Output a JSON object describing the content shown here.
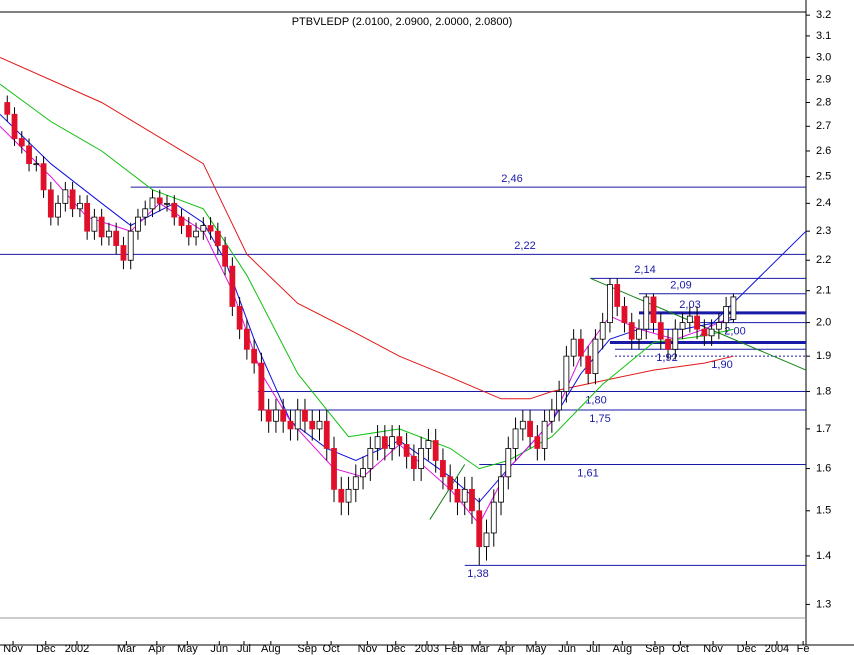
{
  "chart_data": {
    "type": "candlestick",
    "title": "PTBVLEDP (2.0100, 2.0900, 2.0000, 2.0800)",
    "log": true,
    "ylim": [
      1.285,
      3.25
    ],
    "yticks": [
      {
        "value": 3.2,
        "label": "3.2"
      },
      {
        "value": 3.1,
        "label": "3.1"
      },
      {
        "value": 3.0,
        "label": "3.0"
      },
      {
        "value": 2.9,
        "label": "2.9"
      },
      {
        "value": 2.8,
        "label": "2.8"
      },
      {
        "value": 2.7,
        "label": "2.7"
      },
      {
        "value": 2.6,
        "label": "2.6"
      },
      {
        "value": 2.5,
        "label": "2.5"
      },
      {
        "value": 2.4,
        "label": "2.4"
      },
      {
        "value": 2.3,
        "label": "2.3"
      },
      {
        "value": 2.2,
        "label": "2.2"
      },
      {
        "value": 2.1,
        "label": "2.1"
      },
      {
        "value": 2.0,
        "label": "2.0"
      },
      {
        "value": 1.9,
        "label": "1.9"
      },
      {
        "value": 1.8,
        "label": "1.8"
      },
      {
        "value": 1.7,
        "label": "1.7"
      },
      {
        "value": 1.6,
        "label": "1.6"
      },
      {
        "value": 1.5,
        "label": "1.5"
      },
      {
        "value": 1.4,
        "label": "1.4"
      },
      {
        "value": 1.3,
        "label": "1.3"
      }
    ],
    "xlim": [
      0,
      111
    ],
    "xticks": [
      {
        "value": 1.8,
        "label": "Nov"
      },
      {
        "value": 6.3,
        "label": "Dec"
      },
      {
        "value": 10.6,
        "label": "2002"
      },
      {
        "value": 17.4,
        "label": "Mar"
      },
      {
        "value": 21.6,
        "label": "Apr"
      },
      {
        "value": 25.8,
        "label": "May"
      },
      {
        "value": 30.2,
        "label": "Jun"
      },
      {
        "value": 33.6,
        "label": "Jul"
      },
      {
        "value": 37.3,
        "label": "Aug"
      },
      {
        "value": 42.3,
        "label": "Sep"
      },
      {
        "value": 45.6,
        "label": "Oct"
      },
      {
        "value": 50.6,
        "label": "Nov"
      },
      {
        "value": 54.5,
        "label": "Dec"
      },
      {
        "value": 58.8,
        "label": "2003"
      },
      {
        "value": 62.5,
        "label": "Feb"
      },
      {
        "value": 66.1,
        "label": "Mar"
      },
      {
        "value": 69.7,
        "label": "Apr"
      },
      {
        "value": 73.8,
        "label": "May"
      },
      {
        "value": 78.1,
        "label": "Jun"
      },
      {
        "value": 81.7,
        "label": "Jul"
      },
      {
        "value": 85.7,
        "label": "Aug"
      },
      {
        "value": 90.2,
        "label": "Sep"
      },
      {
        "value": 93.7,
        "label": "Oct"
      },
      {
        "value": 98.2,
        "label": "Nov"
      },
      {
        "value": 102.8,
        "label": "Dec"
      },
      {
        "value": 107,
        "label": "2004"
      },
      {
        "value": 110.6,
        "label": "Fe"
      }
    ],
    "up_color": "#ffffff",
    "down_color": "#e0102a",
    "x": [
      1,
      2,
      3,
      4,
      5,
      6,
      7,
      8,
      9,
      10,
      11,
      12,
      13,
      14,
      15,
      16,
      17,
      18,
      19,
      20,
      21,
      22,
      23,
      24,
      25,
      26,
      27,
      28,
      29,
      30,
      31,
      32,
      33,
      34,
      35,
      36,
      37,
      38,
      39,
      40,
      41,
      42,
      43,
      44,
      45,
      46,
      47,
      48,
      49,
      50,
      51,
      52,
      53,
      54,
      55,
      56,
      57,
      58,
      59,
      60,
      61,
      62,
      63,
      64,
      65,
      66,
      67,
      68,
      69,
      70,
      71,
      72,
      73,
      74,
      75,
      76,
      77,
      78,
      79,
      80,
      81,
      82,
      83,
      84,
      85,
      86,
      87,
      88,
      89,
      90,
      91,
      92,
      93,
      94,
      95,
      96,
      97,
      98,
      99,
      100,
      101
    ],
    "open": [
      2.8,
      2.75,
      2.65,
      2.62,
      2.55,
      2.55,
      2.45,
      2.35,
      2.4,
      2.45,
      2.38,
      2.4,
      2.3,
      2.35,
      2.28,
      2.3,
      2.25,
      2.2,
      2.3,
      2.35,
      2.38,
      2.42,
      2.4,
      2.4,
      2.35,
      2.32,
      2.28,
      2.3,
      2.32,
      2.3,
      2.25,
      2.18,
      2.05,
      1.98,
      1.92,
      1.88,
      1.75,
      1.72,
      1.75,
      1.72,
      1.7,
      1.75,
      1.72,
      1.7,
      1.72,
      1.65,
      1.55,
      1.52,
      1.55,
      1.58,
      1.6,
      1.65,
      1.68,
      1.65,
      1.68,
      1.66,
      1.63,
      1.6,
      1.65,
      1.67,
      1.62,
      1.58,
      1.55,
      1.52,
      1.55,
      1.5,
      1.42,
      1.45,
      1.52,
      1.58,
      1.65,
      1.7,
      1.72,
      1.68,
      1.65,
      1.72,
      1.75,
      1.8,
      1.9,
      1.95,
      1.9,
      1.85,
      1.95,
      2.0,
      2.12,
      2.05,
      2.0,
      1.95,
      1.98,
      2.08,
      2.0,
      1.95,
      1.92,
      1.98,
      2.0,
      2.02,
      1.98,
      1.96,
      1.98,
      2.0,
      2.01
    ],
    "high": [
      2.83,
      2.78,
      2.68,
      2.65,
      2.58,
      2.58,
      2.48,
      2.43,
      2.48,
      2.48,
      2.43,
      2.43,
      2.38,
      2.38,
      2.33,
      2.33,
      2.28,
      2.33,
      2.38,
      2.41,
      2.45,
      2.45,
      2.43,
      2.43,
      2.38,
      2.35,
      2.33,
      2.35,
      2.35,
      2.33,
      2.28,
      2.21,
      2.08,
      2.01,
      1.95,
      1.91,
      1.78,
      1.78,
      1.78,
      1.75,
      1.78,
      1.78,
      1.75,
      1.75,
      1.75,
      1.68,
      1.58,
      1.58,
      1.61,
      1.63,
      1.68,
      1.71,
      1.71,
      1.71,
      1.71,
      1.69,
      1.66,
      1.68,
      1.7,
      1.7,
      1.65,
      1.61,
      1.58,
      1.58,
      1.58,
      1.53,
      1.48,
      1.55,
      1.61,
      1.68,
      1.73,
      1.75,
      1.75,
      1.71,
      1.75,
      1.78,
      1.83,
      1.93,
      1.98,
      1.98,
      1.93,
      1.98,
      2.03,
      2.14,
      2.14,
      2.08,
      2.03,
      2.01,
      2.09,
      2.09,
      2.03,
      1.98,
      2.01,
      2.03,
      2.05,
      2.05,
      2.01,
      2.01,
      2.03,
      2.08,
      2.09
    ],
    "low": [
      2.72,
      2.62,
      2.59,
      2.52,
      2.52,
      2.42,
      2.32,
      2.32,
      2.37,
      2.35,
      2.35,
      2.27,
      2.27,
      2.25,
      2.25,
      2.22,
      2.17,
      2.17,
      2.27,
      2.32,
      2.35,
      2.37,
      2.37,
      2.32,
      2.29,
      2.25,
      2.25,
      2.27,
      2.27,
      2.22,
      2.15,
      2.02,
      1.95,
      1.89,
      1.85,
      1.72,
      1.69,
      1.69,
      1.69,
      1.67,
      1.67,
      1.69,
      1.67,
      1.67,
      1.62,
      1.52,
      1.49,
      1.49,
      1.52,
      1.55,
      1.57,
      1.62,
      1.62,
      1.62,
      1.63,
      1.6,
      1.57,
      1.57,
      1.62,
      1.59,
      1.55,
      1.52,
      1.49,
      1.49,
      1.47,
      1.38,
      1.39,
      1.42,
      1.49,
      1.55,
      1.62,
      1.67,
      1.65,
      1.62,
      1.62,
      1.69,
      1.72,
      1.77,
      1.87,
      1.87,
      1.82,
      1.82,
      1.92,
      1.97,
      2.02,
      1.97,
      1.92,
      1.92,
      1.95,
      1.97,
      1.92,
      1.89,
      1.89,
      1.95,
      1.97,
      1.95,
      1.93,
      1.93,
      1.95,
      1.97,
      2.0
    ],
    "close": [
      2.75,
      2.65,
      2.62,
      2.55,
      2.55,
      2.45,
      2.35,
      2.4,
      2.45,
      2.38,
      2.4,
      2.3,
      2.35,
      2.28,
      2.3,
      2.25,
      2.2,
      2.3,
      2.35,
      2.38,
      2.42,
      2.4,
      2.4,
      2.35,
      2.32,
      2.28,
      2.3,
      2.32,
      2.3,
      2.25,
      2.18,
      2.05,
      1.98,
      1.92,
      1.88,
      1.75,
      1.72,
      1.75,
      1.72,
      1.7,
      1.75,
      1.72,
      1.7,
      1.72,
      1.65,
      1.55,
      1.52,
      1.55,
      1.58,
      1.6,
      1.65,
      1.68,
      1.65,
      1.68,
      1.66,
      1.63,
      1.6,
      1.65,
      1.67,
      1.62,
      1.58,
      1.55,
      1.52,
      1.55,
      1.5,
      1.42,
      1.45,
      1.52,
      1.58,
      1.65,
      1.7,
      1.72,
      1.68,
      1.65,
      1.72,
      1.75,
      1.8,
      1.9,
      1.95,
      1.9,
      1.85,
      1.95,
      2.0,
      2.12,
      2.05,
      2.0,
      1.95,
      1.98,
      2.08,
      2.0,
      1.95,
      1.92,
      1.98,
      2.0,
      2.02,
      1.98,
      1.96,
      1.98,
      2.0,
      2.05,
      2.08
    ],
    "series": [
      {
        "color": "#e01818",
        "x": [
          0,
          14,
          28,
          34,
          41,
          48,
          55,
          62,
          69,
          73,
          76,
          83,
          90,
          97,
          101
        ],
        "values": [
          3.0,
          2.8,
          2.55,
          2.22,
          2.06,
          1.98,
          1.9,
          1.84,
          1.78,
          1.78,
          1.8,
          1.83,
          1.86,
          1.88,
          1.9
        ]
      },
      {
        "color": "#10c010",
        "x": [
          0,
          7,
          14,
          21,
          28,
          34,
          41,
          48,
          55,
          62,
          66,
          70,
          76,
          83,
          90,
          97,
          101
        ],
        "values": [
          2.88,
          2.72,
          2.6,
          2.45,
          2.38,
          2.15,
          1.85,
          1.68,
          1.7,
          1.65,
          1.6,
          1.62,
          1.68,
          1.82,
          1.94,
          1.96,
          1.98
        ]
      },
      {
        "color": "#1010e0",
        "x": [
          0,
          7,
          14,
          18,
          24,
          28,
          31,
          35,
          40,
          45,
          49,
          55,
          62,
          66,
          70,
          76,
          80,
          84,
          88,
          94,
          101
        ],
        "values": [
          2.75,
          2.55,
          2.4,
          2.32,
          2.4,
          2.33,
          2.2,
          1.95,
          1.72,
          1.65,
          1.62,
          1.67,
          1.58,
          1.52,
          1.6,
          1.72,
          1.85,
          1.95,
          1.98,
          1.98,
          2.01
        ]
      },
      {
        "color": "#e010e0",
        "x": [
          0,
          7,
          12,
          18,
          22,
          28,
          32,
          36,
          40,
          46,
          50,
          55,
          62,
          66,
          70,
          76,
          80,
          84,
          88,
          93,
          97,
          101
        ],
        "values": [
          2.7,
          2.5,
          2.35,
          2.3,
          2.4,
          2.3,
          2.1,
          1.85,
          1.72,
          1.6,
          1.58,
          1.66,
          1.55,
          1.47,
          1.6,
          1.72,
          1.9,
          2.02,
          1.98,
          1.95,
          1.98,
          2.02
        ]
      }
    ],
    "levels": [
      {
        "value": 2.46,
        "label": "2,46",
        "from": 18
      },
      {
        "value": 2.22,
        "label": "2,22",
        "from": 0
      },
      {
        "value": 2.14,
        "label": "2,14",
        "from": 81.3
      },
      {
        "value": 2.09,
        "label": "2,09",
        "from": 88
      },
      {
        "value": 2.03,
        "label": "2,03",
        "from": 88,
        "width": 3
      },
      {
        "value": 2.0,
        "label": "2,00",
        "from": 96.4
      },
      {
        "value": 1.94,
        "from": 84,
        "width": 3
      },
      {
        "value": 1.92,
        "label": "1,92",
        "from": 84.7
      },
      {
        "value": 1.9,
        "label": "1,90",
        "from": 84.7,
        "dash": true
      },
      {
        "value": 1.8,
        "label": "1,80",
        "from": 35.5
      },
      {
        "value": 1.75,
        "label": "1,75",
        "from": 35.5
      },
      {
        "value": 1.61,
        "label": "1,61",
        "from": 66
      },
      {
        "value": 1.38,
        "label": "1,38",
        "from": 64
      }
    ],
    "trendlines": [
      {
        "color": "#108010",
        "from": [
          81.3,
          2.14
        ],
        "to": [
          111,
          1.86
        ]
      },
      {
        "color": "#1010e0",
        "from": [
          96.4,
          1.96
        ],
        "to": [
          111,
          2.3
        ]
      },
      {
        "color": "#108010",
        "from": [
          59.2,
          1.48
        ],
        "to": [
          64,
          1.61
        ]
      }
    ]
  }
}
